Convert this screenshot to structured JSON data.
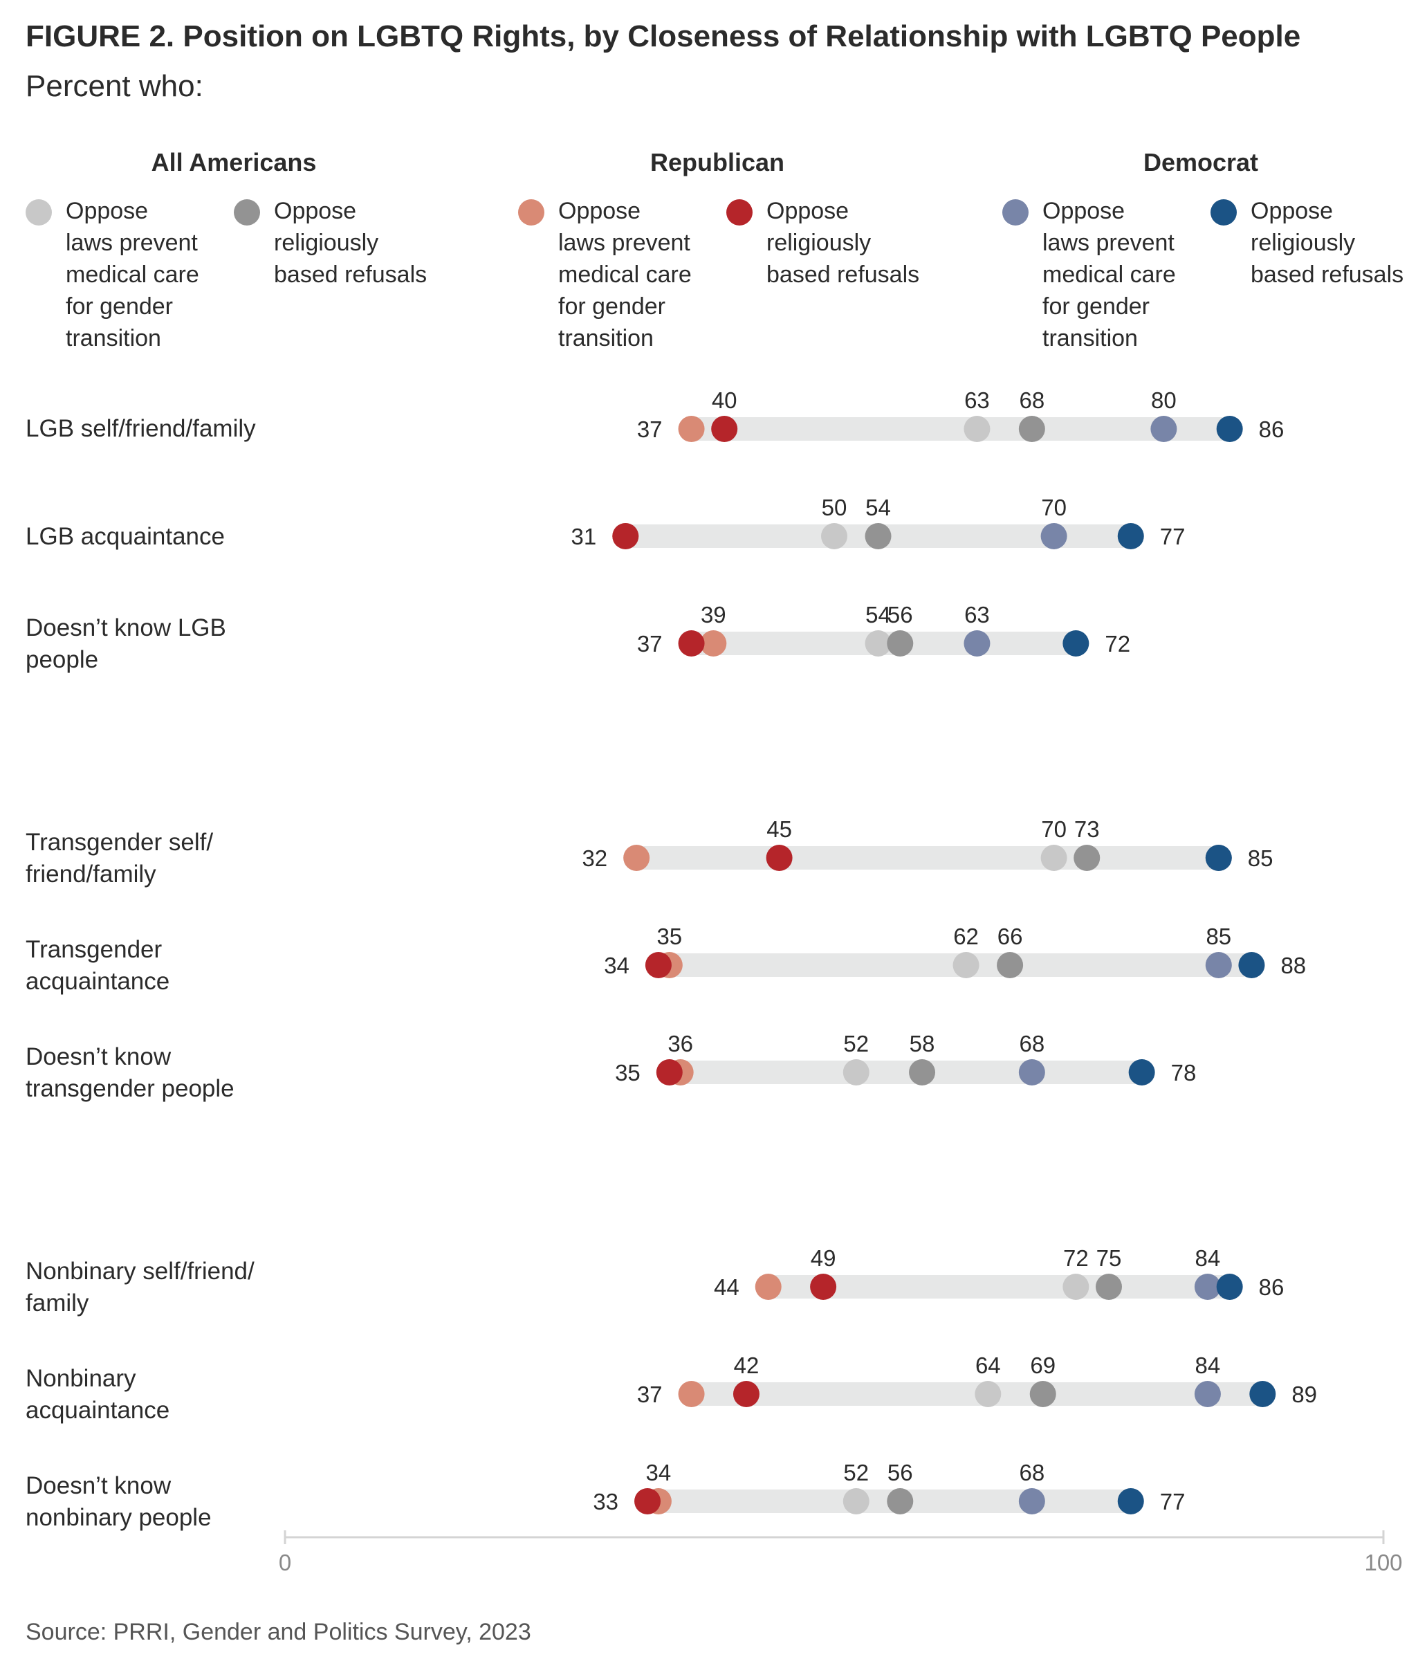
{
  "title": "FIGURE 2.  Position on LGBTQ Rights, by Closeness of Relationship with LGBTQ People",
  "subtitle": "Percent who:",
  "source": "Source: PRRI, Gender and Politics Survey, 2023",
  "legend": {
    "groups": [
      {
        "name": "All Americans"
      },
      {
        "name": "Republican"
      },
      {
        "name": "Democrat"
      }
    ],
    "items": [
      {
        "label": "Oppose\nlaws prevent\nmedical care\nfor gender\ntransition",
        "color": "#c8c8c8"
      },
      {
        "label": "Oppose\nreligiously\nbased refusals",
        "color": "#939393"
      },
      {
        "label": "Oppose\nlaws prevent\nmedical care\nfor gender\ntransition",
        "color": "#d98a75"
      },
      {
        "label": "Oppose\nreligiously\nbased refusals",
        "color": "#b5252a"
      },
      {
        "label": "Oppose\nlaws prevent\nmedical care\nfor gender\ntransition",
        "color": "#7885a8"
      },
      {
        "label": "Oppose\nreligiously\nbased refusals",
        "color": "#1b5385"
      }
    ]
  },
  "chart_data": {
    "type": "dot",
    "xlim": [
      0,
      100
    ],
    "x_ticks": [
      "0",
      "100"
    ],
    "track_color": "#e6e7e7",
    "series": [
      {
        "name": "All Americans — Oppose laws prevent medical care for gender transition",
        "color": "#c8c8c8"
      },
      {
        "name": "All Americans — Oppose religiously based refusals",
        "color": "#939393"
      },
      {
        "name": "Republican — Oppose laws prevent medical care for gender transition",
        "color": "#d98a75"
      },
      {
        "name": "Republican — Oppose religiously based refusals",
        "color": "#b5252a"
      },
      {
        "name": "Democrat — Oppose laws prevent medical care for gender transition",
        "color": "#7885a8"
      },
      {
        "name": "Democrat — Oppose religiously based refusals",
        "color": "#1b5385"
      }
    ],
    "rows": [
      {
        "label": "LGB self/friend/family",
        "values": [
          63,
          68,
          37,
          40,
          80,
          86
        ]
      },
      {
        "label": "LGB acquaintance",
        "values": [
          50,
          54,
          31,
          31,
          70,
          77
        ]
      },
      {
        "label": "Doesn’t know LGB\npeople",
        "values": [
          54,
          56,
          39,
          37,
          63,
          72
        ]
      },
      {
        "label": "Transgender self/\nfriend/family",
        "values": [
          70,
          73,
          32,
          45,
          85,
          85
        ]
      },
      {
        "label": "Transgender\nacquaintance",
        "values": [
          62,
          66,
          35,
          34,
          85,
          88
        ]
      },
      {
        "label": "Doesn’t know\ntransgender people",
        "values": [
          52,
          58,
          36,
          35,
          68,
          78
        ]
      },
      {
        "label": "Nonbinary self/friend/\nfamily",
        "values": [
          72,
          75,
          44,
          49,
          84,
          86
        ]
      },
      {
        "label": "Nonbinary\nacquaintance",
        "values": [
          64,
          69,
          37,
          42,
          84,
          89
        ]
      },
      {
        "label": "Doesn’t know\nnonbinary people",
        "values": [
          52,
          56,
          34,
          33,
          68,
          77
        ]
      }
    ]
  }
}
